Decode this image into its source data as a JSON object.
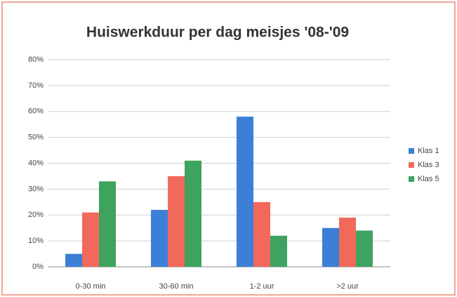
{
  "chart_data": {
    "type": "bar",
    "title": "Huiswerkduur per dag meisjes '08-'09",
    "categories": [
      "0-30 min",
      "30-60 min",
      "1-2 uur",
      ">2 uur"
    ],
    "series": [
      {
        "name": "Klas 1",
        "color": "#3b7fd6",
        "values": [
          5,
          22,
          58,
          15
        ]
      },
      {
        "name": "Klas 3",
        "color": "#f2695c",
        "values": [
          21,
          35,
          25,
          19
        ]
      },
      {
        "name": "Klas 5",
        "color": "#3ea35f",
        "values": [
          33,
          41,
          12,
          14
        ]
      }
    ],
    "ylim": [
      0,
      80
    ],
    "yticks": [
      {
        "value": 0,
        "label": "0%"
      },
      {
        "value": 10,
        "label": "10%"
      },
      {
        "value": 20,
        "label": "20%"
      },
      {
        "value": 30,
        "label": "30%"
      },
      {
        "value": 40,
        "label": "40%"
      },
      {
        "value": 50,
        "label": "50%"
      },
      {
        "value": 60,
        "label": "60%"
      },
      {
        "value": 70,
        "label": "70%"
      },
      {
        "value": 80,
        "label": "80%"
      }
    ],
    "grid": true,
    "legend": "right"
  }
}
